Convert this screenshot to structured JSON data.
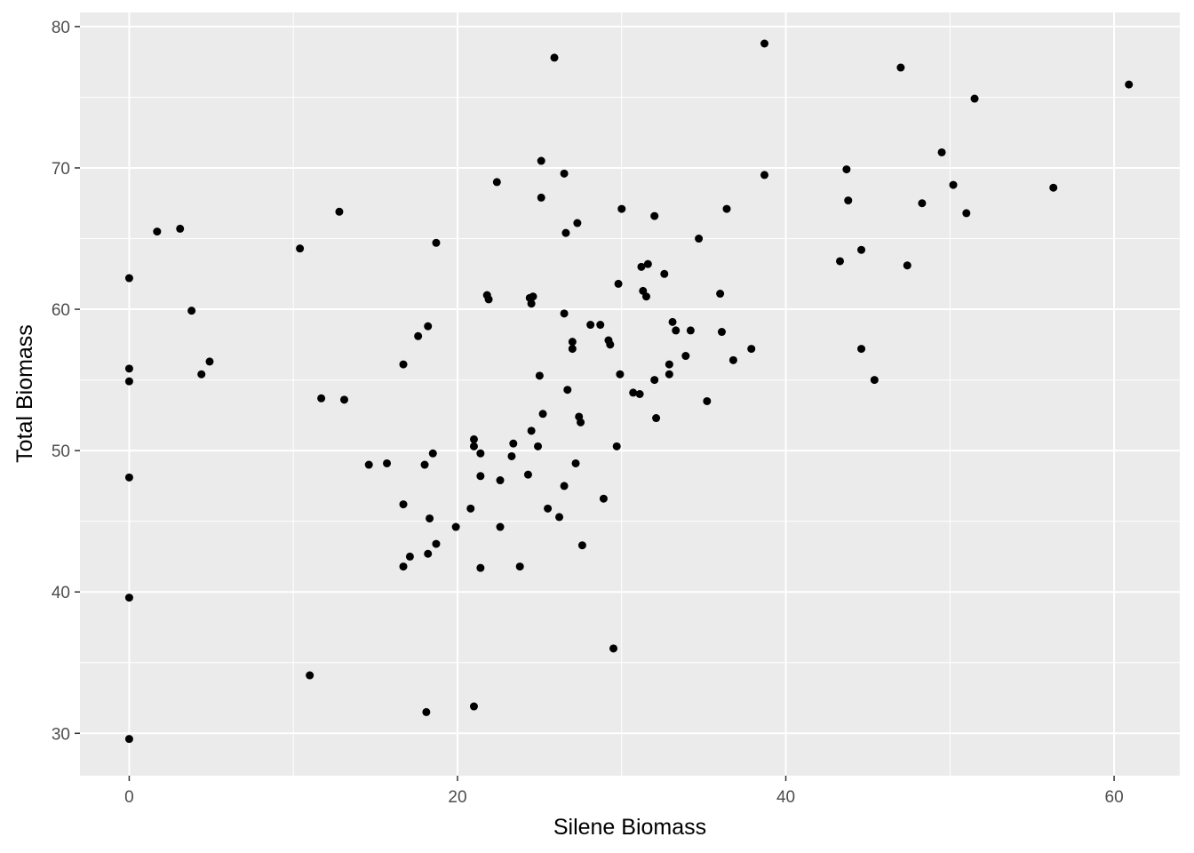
{
  "chart_data": {
    "type": "scatter",
    "xlabel": "Silene Biomass",
    "ylabel": "Total Biomass",
    "xlim": [
      -3,
      64
    ],
    "ylim": [
      27,
      81
    ],
    "x_ticks": [
      0,
      20,
      40,
      60
    ],
    "y_ticks": [
      30,
      40,
      50,
      60,
      70,
      80
    ],
    "x_tick_labels": [
      "0",
      "20",
      "40",
      "60"
    ],
    "y_tick_labels": [
      "30",
      "40",
      "50",
      "60",
      "70",
      "80"
    ],
    "grid": true,
    "colors": {
      "panel": "#ebebeb",
      "grid": "#ffffff",
      "point": "#000000",
      "tick_text": "#4d4d4d"
    },
    "points": [
      [
        0,
        62.2
      ],
      [
        0,
        55.8
      ],
      [
        0,
        54.9
      ],
      [
        0,
        48.1
      ],
      [
        0,
        39.6
      ],
      [
        0,
        29.6
      ],
      [
        1.7,
        65.5
      ],
      [
        3.1,
        65.7
      ],
      [
        3.8,
        59.9
      ],
      [
        4.4,
        55.4
      ],
      [
        4.9,
        56.3
      ],
      [
        10.4,
        64.3
      ],
      [
        11.0,
        34.1
      ],
      [
        11.7,
        53.7
      ],
      [
        12.8,
        66.9
      ],
      [
        13.1,
        53.6
      ],
      [
        14.6,
        49.0
      ],
      [
        15.7,
        49.1
      ],
      [
        16.7,
        56.1
      ],
      [
        16.7,
        46.2
      ],
      [
        16.7,
        41.8
      ],
      [
        17.1,
        42.5
      ],
      [
        17.6,
        58.1
      ],
      [
        18.0,
        49.0
      ],
      [
        18.1,
        31.5
      ],
      [
        18.2,
        58.8
      ],
      [
        18.2,
        42.7
      ],
      [
        18.3,
        45.2
      ],
      [
        18.5,
        49.8
      ],
      [
        18.7,
        64.7
      ],
      [
        18.7,
        43.4
      ],
      [
        19.9,
        44.6
      ],
      [
        20.8,
        45.9
      ],
      [
        21.0,
        50.8
      ],
      [
        21.0,
        50.3
      ],
      [
        21.0,
        31.9
      ],
      [
        21.4,
        49.8
      ],
      [
        21.4,
        48.2
      ],
      [
        21.4,
        41.7
      ],
      [
        21.8,
        61.0
      ],
      [
        21.9,
        60.7
      ],
      [
        22.4,
        69.0
      ],
      [
        22.6,
        47.9
      ],
      [
        22.6,
        44.6
      ],
      [
        23.3,
        49.6
      ],
      [
        23.4,
        50.5
      ],
      [
        23.8,
        41.8
      ],
      [
        24.3,
        48.3
      ],
      [
        24.4,
        60.8
      ],
      [
        24.5,
        60.4
      ],
      [
        24.5,
        51.4
      ],
      [
        24.6,
        60.9
      ],
      [
        24.9,
        50.3
      ],
      [
        25.0,
        55.3
      ],
      [
        25.1,
        70.5
      ],
      [
        25.1,
        67.9
      ],
      [
        25.2,
        52.6
      ],
      [
        25.5,
        45.9
      ],
      [
        25.9,
        77.8
      ],
      [
        26.2,
        45.3
      ],
      [
        26.5,
        59.7
      ],
      [
        26.5,
        47.5
      ],
      [
        26.5,
        69.6
      ],
      [
        26.6,
        65.4
      ],
      [
        26.7,
        54.3
      ],
      [
        27.0,
        57.7
      ],
      [
        27.0,
        57.2
      ],
      [
        27.2,
        49.1
      ],
      [
        27.3,
        66.1
      ],
      [
        27.4,
        52.4
      ],
      [
        27.5,
        52.0
      ],
      [
        27.6,
        43.3
      ],
      [
        28.1,
        58.9
      ],
      [
        28.7,
        58.9
      ],
      [
        28.9,
        46.6
      ],
      [
        29.2,
        57.8
      ],
      [
        29.3,
        57.5
      ],
      [
        29.5,
        36.0
      ],
      [
        29.7,
        50.3
      ],
      [
        29.8,
        61.8
      ],
      [
        29.9,
        55.4
      ],
      [
        30.0,
        67.1
      ],
      [
        30.7,
        54.1
      ],
      [
        31.1,
        54.0
      ],
      [
        31.2,
        63.0
      ],
      [
        31.3,
        61.3
      ],
      [
        31.5,
        60.9
      ],
      [
        31.6,
        63.2
      ],
      [
        32.0,
        55.0
      ],
      [
        32.0,
        66.6
      ],
      [
        32.1,
        52.3
      ],
      [
        32.6,
        62.5
      ],
      [
        32.9,
        56.1
      ],
      [
        32.9,
        55.4
      ],
      [
        33.1,
        59.1
      ],
      [
        33.3,
        58.5
      ],
      [
        33.9,
        56.7
      ],
      [
        34.2,
        58.5
      ],
      [
        34.7,
        65.0
      ],
      [
        35.2,
        53.5
      ],
      [
        36.0,
        61.1
      ],
      [
        36.1,
        58.4
      ],
      [
        36.4,
        67.1
      ],
      [
        36.8,
        56.4
      ],
      [
        37.9,
        57.2
      ],
      [
        38.7,
        78.8
      ],
      [
        38.7,
        69.5
      ],
      [
        43.3,
        63.4
      ],
      [
        43.7,
        69.9
      ],
      [
        43.8,
        67.7
      ],
      [
        44.6,
        64.2
      ],
      [
        44.6,
        57.2
      ],
      [
        45.4,
        55.0
      ],
      [
        47.0,
        77.1
      ],
      [
        47.4,
        63.1
      ],
      [
        48.3,
        67.5
      ],
      [
        49.5,
        71.1
      ],
      [
        50.2,
        68.8
      ],
      [
        51.0,
        66.8
      ],
      [
        51.5,
        74.9
      ],
      [
        56.3,
        68.6
      ],
      [
        60.9,
        75.9
      ]
    ]
  }
}
